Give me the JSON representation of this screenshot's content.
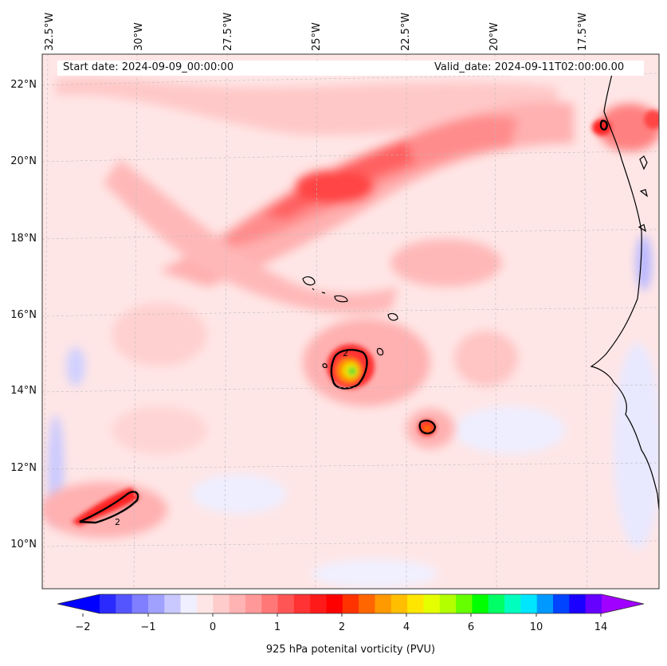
{
  "header": {
    "start_date": "Start date: 2024-09-09_00:00:00",
    "valid_date": "Valid_date: 2024-09-11T02:00:00.00"
  },
  "axes": {
    "lon_labels": [
      "32.5°W",
      "30°W",
      "27.5°W",
      "25°W",
      "22.5°W",
      "20°W",
      "17.5°W"
    ],
    "lat_labels": [
      "22°N",
      "20°N",
      "18°N",
      "16°N",
      "14°N",
      "12°N",
      "10°N"
    ]
  },
  "colorbar": {
    "label": "925 hPa potenital vorticity (PVU)",
    "tick_labels": [
      "−2",
      "−1",
      "0",
      "1",
      "2",
      "4",
      "6",
      "10",
      "14"
    ],
    "colors": [
      "#0000ff",
      "#2a2aff",
      "#5555ff",
      "#7f7fff",
      "#a0a0ff",
      "#c9c9ff",
      "#efefff",
      "#ffe6e6",
      "#ffcccc",
      "#ffb3b3",
      "#ff9999",
      "#ff7777",
      "#ff5555",
      "#ff3333",
      "#ff1a1a",
      "#ff0000",
      "#ff3300",
      "#ff6600",
      "#ff9900",
      "#ffbf00",
      "#ffe600",
      "#e6ff00",
      "#b3ff00",
      "#66ff00",
      "#00ff00",
      "#00ff66",
      "#00ffbf",
      "#00e6ff",
      "#0099ff",
      "#0044ff",
      "#1a00ff",
      "#6600ff",
      "#a000ff"
    ]
  },
  "map": {
    "colors": {
      "background_light": "#ffe8e8",
      "band_light": "#ffc8c8",
      "band_mid": "#ff9a9a",
      "band_strong": "#ff5a5a",
      "band_core": "#ff3333",
      "negative_light": "#e8e8ff",
      "negative_mid": "#b8b8ff",
      "high_yellow": "#f0e000",
      "high_green": "#44dd33",
      "coast": "#000000"
    }
  }
}
